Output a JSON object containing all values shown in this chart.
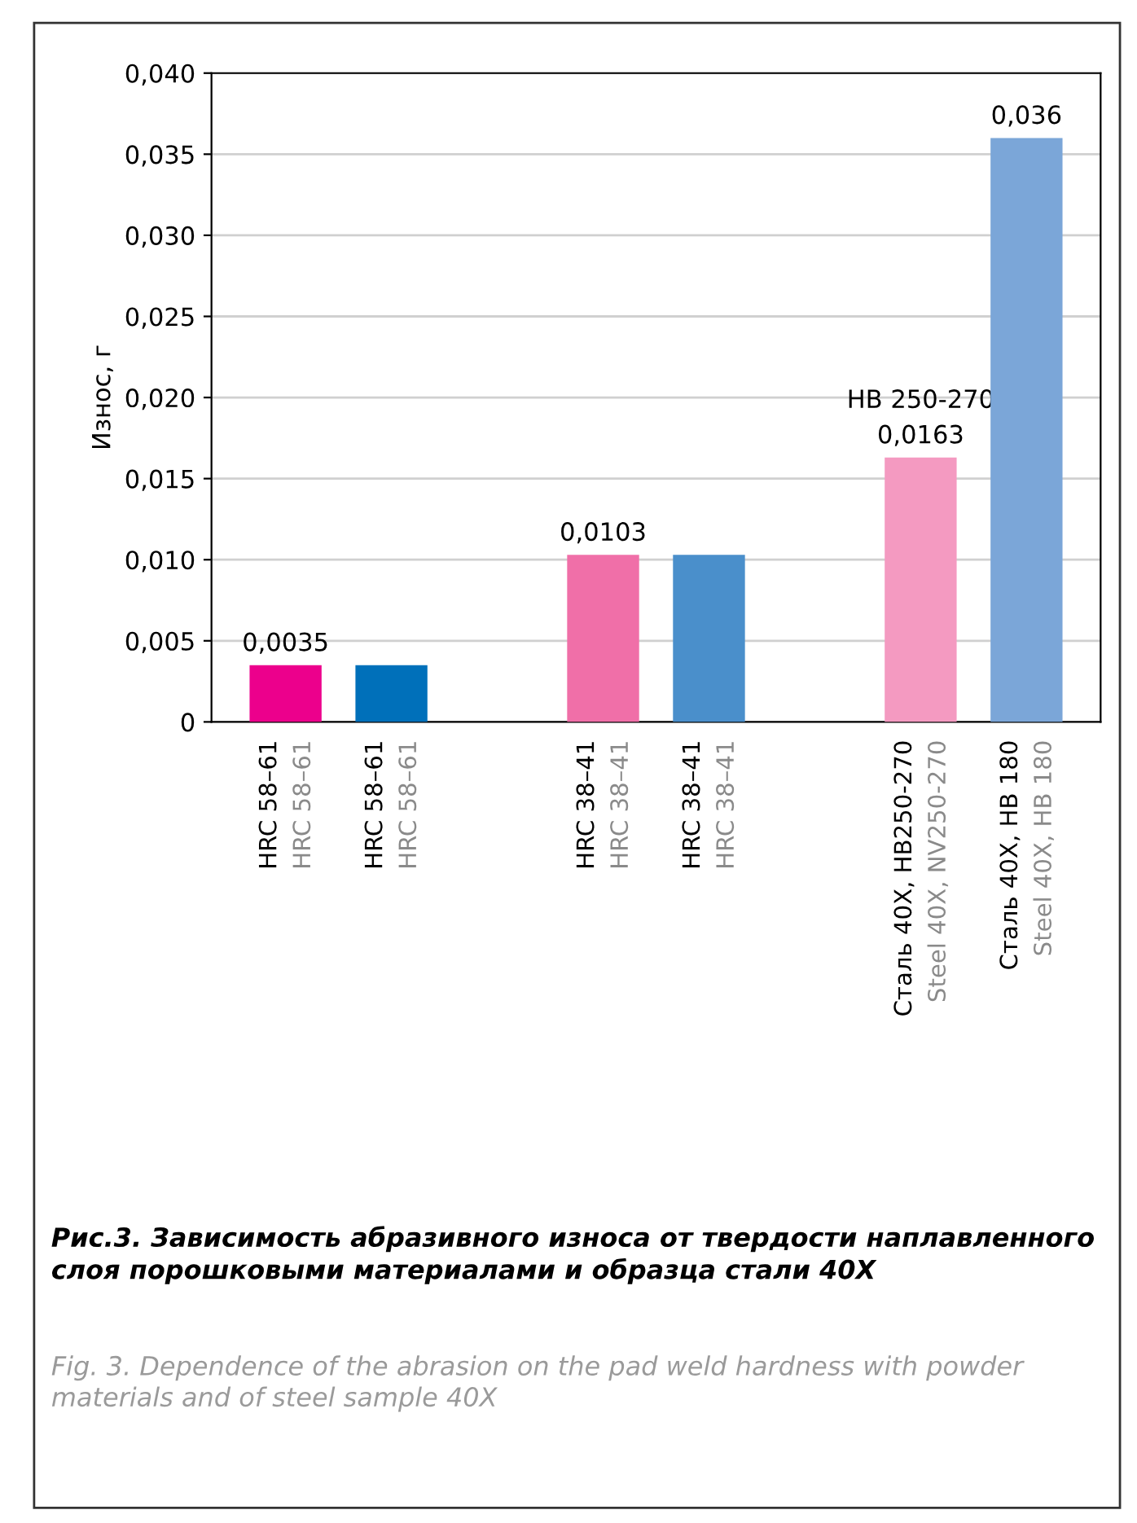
{
  "chart_data": {
    "type": "bar",
    "ylabel": "Износ, г",
    "categories": [
      "HRC 58–61\nHRC 58–61",
      "HRC 58–61\nHRC 58–61",
      null,
      "HRC 38–41\nHRC 38–41",
      "HRC 38–41\nHRC 38–41",
      null,
      "Сталь 40Х, НВ250-270\nSteel 40X, NV250-270",
      "Сталь 40Х, НВ 180\nSteel 40X, HB 180"
    ],
    "values": [
      0.0035,
      0.0035,
      null,
      0.0103,
      0.0103,
      null,
      0.0163,
      0.036
    ],
    "colors": [
      "#ec008c",
      "#0070ba",
      "#ffffff",
      "#f06fa8",
      "#4a8fcb",
      "#ffffff",
      "#f49ac1",
      "#7ba6d8"
    ],
    "value_labels": [
      "0,0035",
      null,
      null,
      "0,0103",
      null,
      null,
      "НВ 250-270\n0,0163",
      "0,036"
    ],
    "ylim": [
      0,
      0.04
    ],
    "yticks": [
      {
        "value": 0,
        "label": "0"
      },
      {
        "value": 0.005,
        "label": "0,005"
      },
      {
        "value": 0.01,
        "label": "0,010"
      },
      {
        "value": 0.015,
        "label": "0,015"
      },
      {
        "value": 0.02,
        "label": "0,020"
      },
      {
        "value": 0.025,
        "label": "0,025"
      },
      {
        "value": 0.03,
        "label": "0,030"
      },
      {
        "value": 0.035,
        "label": "0,035"
      },
      {
        "value": 0.04,
        "label": "0,040"
      }
    ],
    "grid": "y",
    "annotations": [
      "Рис.3. Зависимость абразивного износа от твердости наплавленного слоя порошковыми материалами и образца стали 40Х",
      "Fig. 3. Dependence of the abrasion on the pad weld hardness with powder materials and of steel sample 40X"
    ]
  }
}
